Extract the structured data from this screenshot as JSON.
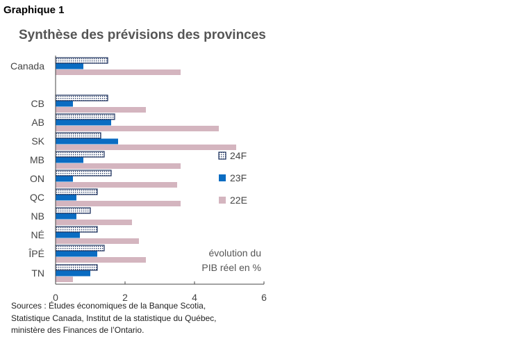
{
  "figure_label": "Graphique 1",
  "chart_data": {
    "type": "bar",
    "orientation": "horizontal",
    "title": "Synthèse des prévisions des provinces",
    "categories": [
      "Canada",
      "CB",
      "AB",
      "SK",
      "MB",
      "ON",
      "QC",
      "NB",
      "NÉ",
      "ÎPÉ",
      "TN"
    ],
    "series": [
      {
        "name": "24F",
        "color": "#1a2f5c",
        "pattern": "dots",
        "values": [
          1.5,
          1.5,
          1.7,
          1.3,
          1.4,
          1.6,
          1.2,
          1.0,
          1.2,
          1.4,
          1.2
        ]
      },
      {
        "name": "23F",
        "color": "#0a6cc2",
        "pattern": "solid",
        "values": [
          0.8,
          0.5,
          1.6,
          1.8,
          0.8,
          0.5,
          0.6,
          0.6,
          0.7,
          1.2,
          1.0
        ]
      },
      {
        "name": "22E",
        "color": "#d4b5bf",
        "pattern": "solid",
        "values": [
          3.6,
          2.6,
          4.7,
          5.2,
          3.6,
          3.5,
          3.6,
          2.2,
          2.4,
          2.6,
          0.5
        ]
      }
    ],
    "xlim": [
      0,
      6
    ],
    "xticks": [
      "0",
      "2",
      "4",
      "6"
    ],
    "xlabel": "",
    "ylabel": "",
    "annotation": [
      "évolution du",
      "PIB réel en %"
    ],
    "legend_position": "right",
    "grid": false
  },
  "source_lines": [
    "Sources : Études économiques de la Banque Scotia,",
    "Statistique Canada, Institut de la statistique du Québec,",
    "ministère des Finances de l’Ontario."
  ]
}
